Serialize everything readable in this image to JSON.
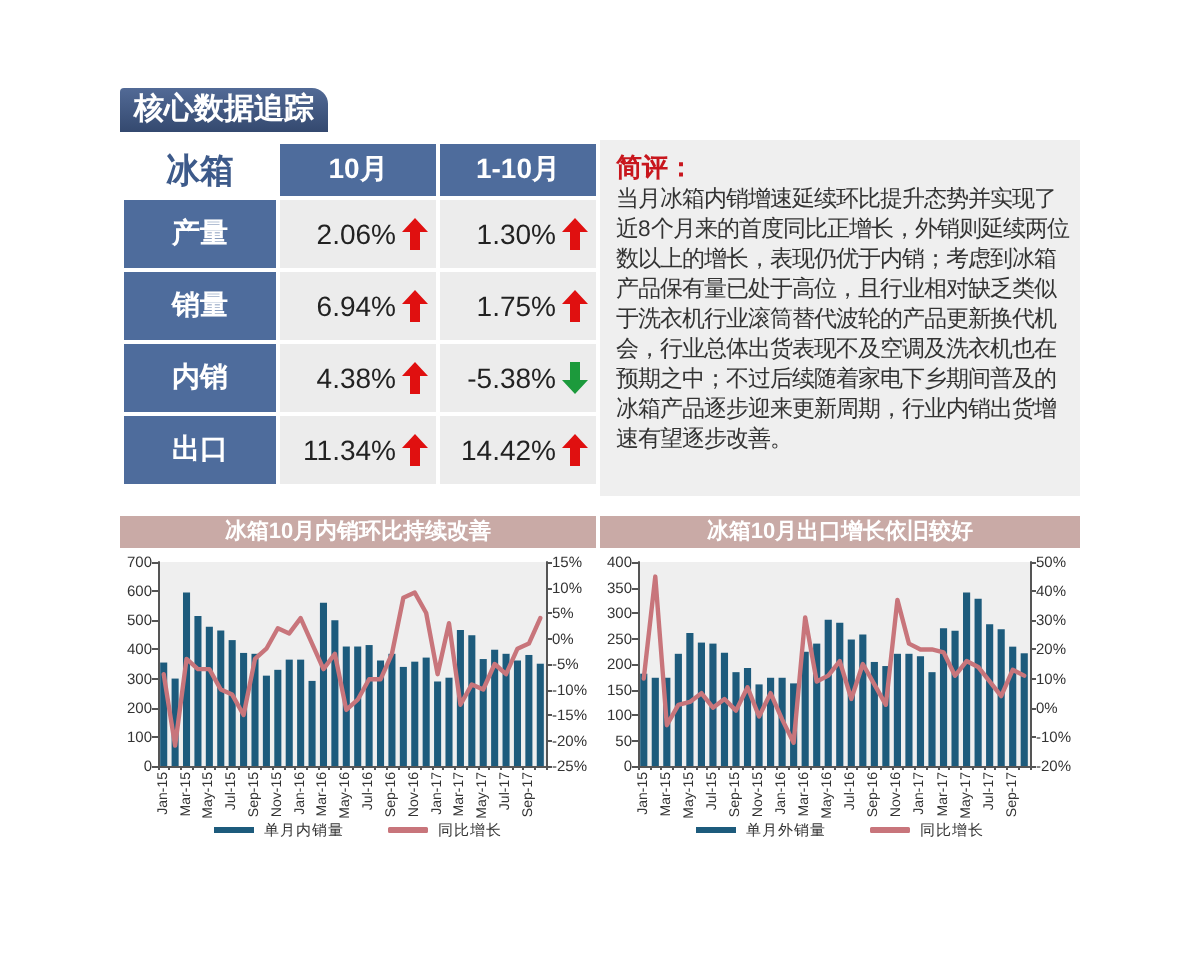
{
  "chart_data": [
    {
      "type": "other",
      "title": "核心数据追踪",
      "ylabel": "冰箱",
      "categories": [
        "产量",
        "销量",
        "内销",
        "出口"
      ],
      "series": [
        {
          "name": "10月",
          "values": [
            2.06,
            6.94,
            4.38,
            11.34
          ],
          "value_labels": [
            "2.06%",
            "6.94%",
            "4.38%",
            "11.34%"
          ]
        },
        {
          "name": "1-10月",
          "values": [
            1.3,
            1.75,
            -5.38,
            14.42
          ],
          "value_labels": [
            "1.30%",
            "1.75%",
            "-5.38%",
            "14.42%"
          ]
        }
      ]
    },
    {
      "type": "other",
      "title": "简评：",
      "annotations": [
        "当月冰箱内销增速延续环比提升态势并实现了近8个月来的首度同比正增长，外销则延续两位数以上的增长，表现仍优于内销；考虑到冰箱产品保有量已处于高位，且行业相对缺乏类似于洗衣机行业滚筒替代波轮的产品更新换代机会，行业总体出货表现不及空调及洗衣机也在预期之中；不过后续随着家电下乡期间普及的冰箱产品逐步迎来更新周期，行业内销出货增速有望逐步改善。"
      ]
    },
    {
      "type": "bar",
      "title": "冰箱10月内销环比持续改善",
      "categories": [
        "Jan-15",
        null,
        "Mar-15",
        null,
        "May-15",
        null,
        "Jul-15",
        null,
        "Sep-15",
        null,
        "Nov-15",
        null,
        "Jan-16",
        null,
        "Mar-16",
        null,
        "May-16",
        null,
        "Jul-16",
        null,
        "Sep-16",
        null,
        "Nov-16",
        null,
        "Jan-17",
        null,
        "Mar-17",
        null,
        "May-17",
        null,
        "Jul-17",
        null,
        "Sep-17",
        null
      ],
      "series": [
        {
          "name": "单月内销量",
          "color": "#1d5b7c",
          "values": [
            355,
            300,
            595,
            515,
            478,
            465,
            432,
            388,
            385,
            310,
            330,
            365,
            365,
            292,
            560,
            500,
            410,
            410,
            415,
            362,
            385,
            340,
            358,
            372,
            290,
            303,
            467,
            449,
            367,
            399,
            385,
            362,
            381,
            351
          ]
        },
        {
          "name": "同比增长",
          "type": "line",
          "axis": "y2",
          "color": "#c8757b",
          "values": [
            -7,
            -21,
            -4,
            -6,
            -6,
            -10,
            -11,
            -15,
            -4,
            -2,
            2,
            1,
            4,
            -1,
            -6,
            -3,
            -14,
            -12,
            -8,
            -8,
            -3,
            8,
            9,
            5,
            -7,
            3,
            -13,
            -9,
            -10,
            -5,
            -7,
            -2,
            -1,
            4
          ]
        }
      ],
      "ylim": [
        0,
        700
      ],
      "yticks": [
        0,
        100,
        200,
        300,
        400,
        500,
        600,
        700
      ],
      "y2lim": [
        -25,
        15
      ],
      "y2ticks": [
        {
          "value": -25,
          "label": "-25%"
        },
        {
          "value": -20,
          "label": "-20%"
        },
        {
          "value": -15,
          "label": "-15%"
        },
        {
          "value": -10,
          "label": "-10%"
        },
        {
          "value": -5,
          "label": "-5%"
        },
        {
          "value": 0,
          "label": "0%"
        },
        {
          "value": 5,
          "label": "5%"
        },
        {
          "value": 10,
          "label": "10%"
        },
        {
          "value": 15,
          "label": "15%"
        }
      ],
      "legend": "bottom",
      "marker": "none",
      "line_style": "solid"
    },
    {
      "type": "bar",
      "title": "冰箱10月出口增长依旧较好",
      "categories": [
        "Jan-15",
        null,
        "Mar-15",
        null,
        "May-15",
        null,
        "Jul-15",
        null,
        "Sep-15",
        null,
        "Nov-15",
        null,
        "Jan-16",
        null,
        "Mar-16",
        null,
        "May-16",
        null,
        "Jul-16",
        null,
        "Sep-16",
        null,
        "Nov-16",
        null,
        "Jan-17",
        null,
        "Mar-17",
        null,
        "May-17",
        null,
        "Jul-17",
        null,
        "Sep-17",
        null
      ],
      "series": [
        {
          "name": "单月外销量",
          "color": "#1d5b7c",
          "values": [
            181,
            173,
            173,
            220,
            261,
            242,
            240,
            222,
            184,
            192,
            160,
            173,
            173,
            162,
            224,
            240,
            287,
            281,
            248,
            258,
            204,
            196,
            220,
            220,
            215,
            184,
            270,
            265,
            340,
            328,
            278,
            268,
            234,
            221
          ]
        },
        {
          "name": "同比增长",
          "type": "line",
          "axis": "y2",
          "color": "#c8757b",
          "values": [
            10,
            45,
            -6,
            1,
            2,
            5,
            0,
            3,
            -1,
            7,
            -3,
            5,
            -4,
            -12,
            31,
            9,
            11,
            16,
            3,
            15,
            8,
            1,
            37,
            22,
            20,
            20,
            19,
            11,
            16,
            14,
            9,
            4,
            13,
            11
          ]
        }
      ],
      "ylim": [
        0,
        400
      ],
      "yticks": [
        0,
        50,
        100,
        150,
        200,
        250,
        300,
        350,
        400
      ],
      "y2lim": [
        -20,
        50
      ],
      "y2ticks": [
        {
          "value": -20,
          "label": "-20%"
        },
        {
          "value": -10,
          "label": "-10%"
        },
        {
          "value": 0,
          "label": "0%"
        },
        {
          "value": 10,
          "label": "10%"
        },
        {
          "value": 20,
          "label": "20%"
        },
        {
          "value": 30,
          "label": "30%"
        },
        {
          "value": 40,
          "label": "40%"
        },
        {
          "value": 50,
          "label": "50%"
        }
      ],
      "legend": "bottom",
      "marker": "none",
      "line_style": "solid"
    }
  ]
}
